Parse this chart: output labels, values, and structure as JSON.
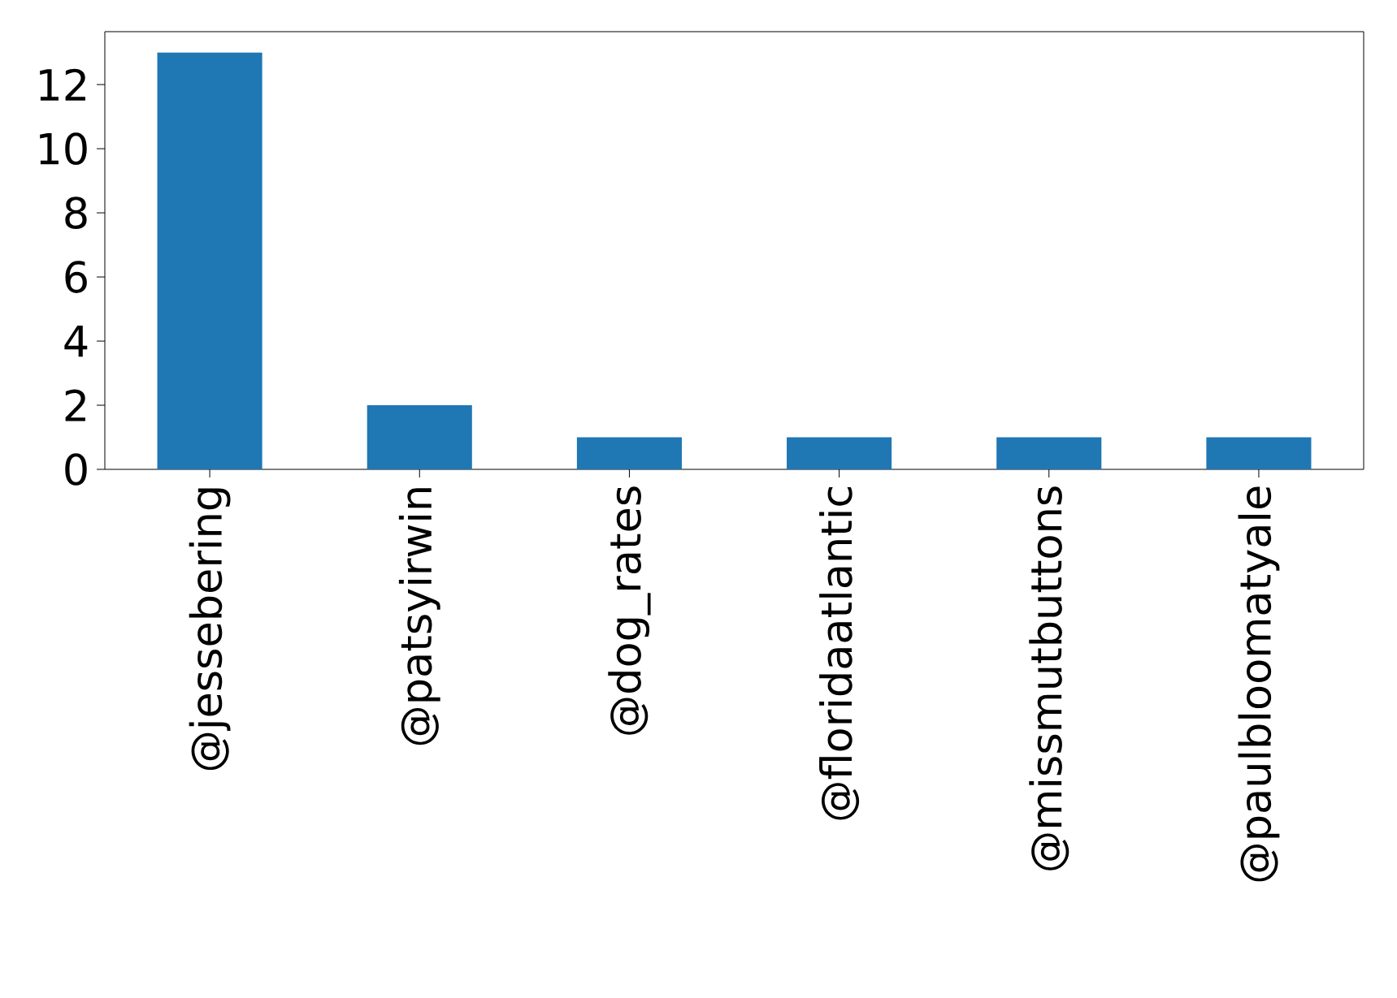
{
  "chart_data": {
    "type": "bar",
    "categories": [
      "@jessebering",
      "@patsyirwin",
      "@dog_rates",
      "@floridaatlantic",
      "@missmutbuttons",
      "@paulbloomatyale"
    ],
    "values": [
      13,
      2,
      1,
      1,
      1,
      1
    ],
    "color": "#1f77b4",
    "ylim": [
      0,
      13.65
    ],
    "yticks": [
      0,
      2,
      4,
      6,
      8,
      10,
      12
    ],
    "grid": false
  }
}
